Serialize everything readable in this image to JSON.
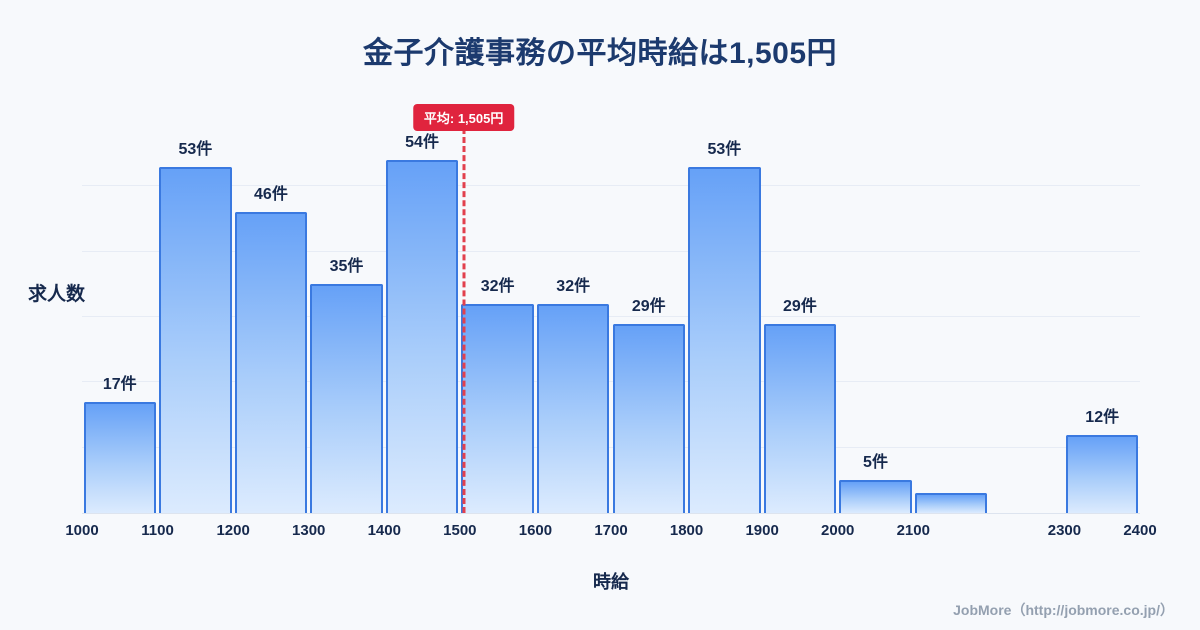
{
  "footer": {
    "text": "JobMore（http://jobmore.co.jp/）"
  },
  "colors": {
    "background": "#f7f9fc",
    "title": "#1c3a6e",
    "label": "#16294d",
    "bar_gradient_top": "#66a1f7",
    "bar_gradient_mid": "#a9cdfa",
    "bar_gradient_bottom": "#dcebfe",
    "bar_border": "#3a79e0",
    "average_line": "#e2404d",
    "average_badge": "#e0243e",
    "footer_text": "#94a0b0"
  },
  "chart_data": {
    "type": "bar",
    "title": "金子介護事務の平均時給は1,505円",
    "xlabel": "時給",
    "ylabel": "求人数",
    "x_range": [
      1000,
      2400
    ],
    "ylim": [
      0,
      60
    ],
    "grid_step": 10,
    "x_ticks": [
      1000,
      1100,
      1200,
      1300,
      1400,
      1500,
      1600,
      1700,
      1800,
      1900,
      2000,
      2100,
      2300,
      2400
    ],
    "average": 1505,
    "average_label": "平均: 1,505円",
    "bins": [
      {
        "start": 1000,
        "end": 1100,
        "count": 17,
        "label": "17件"
      },
      {
        "start": 1100,
        "end": 1200,
        "count": 53,
        "label": "53件"
      },
      {
        "start": 1200,
        "end": 1300,
        "count": 46,
        "label": "46件"
      },
      {
        "start": 1300,
        "end": 1400,
        "count": 35,
        "label": "35件"
      },
      {
        "start": 1400,
        "end": 1500,
        "count": 54,
        "label": "54件"
      },
      {
        "start": 1500,
        "end": 1600,
        "count": 32,
        "label": "32件"
      },
      {
        "start": 1600,
        "end": 1700,
        "count": 32,
        "label": "32件"
      },
      {
        "start": 1700,
        "end": 1800,
        "count": 29,
        "label": "29件"
      },
      {
        "start": 1800,
        "end": 1900,
        "count": 53,
        "label": "53件"
      },
      {
        "start": 1900,
        "end": 2000,
        "count": 29,
        "label": "29件"
      },
      {
        "start": 2000,
        "end": 2100,
        "count": 5,
        "label": "5件"
      },
      {
        "start": 2100,
        "end": 2200,
        "count": 3,
        "label": ""
      },
      {
        "start": 2300,
        "end": 2400,
        "count": 12,
        "label": "12件"
      }
    ]
  }
}
